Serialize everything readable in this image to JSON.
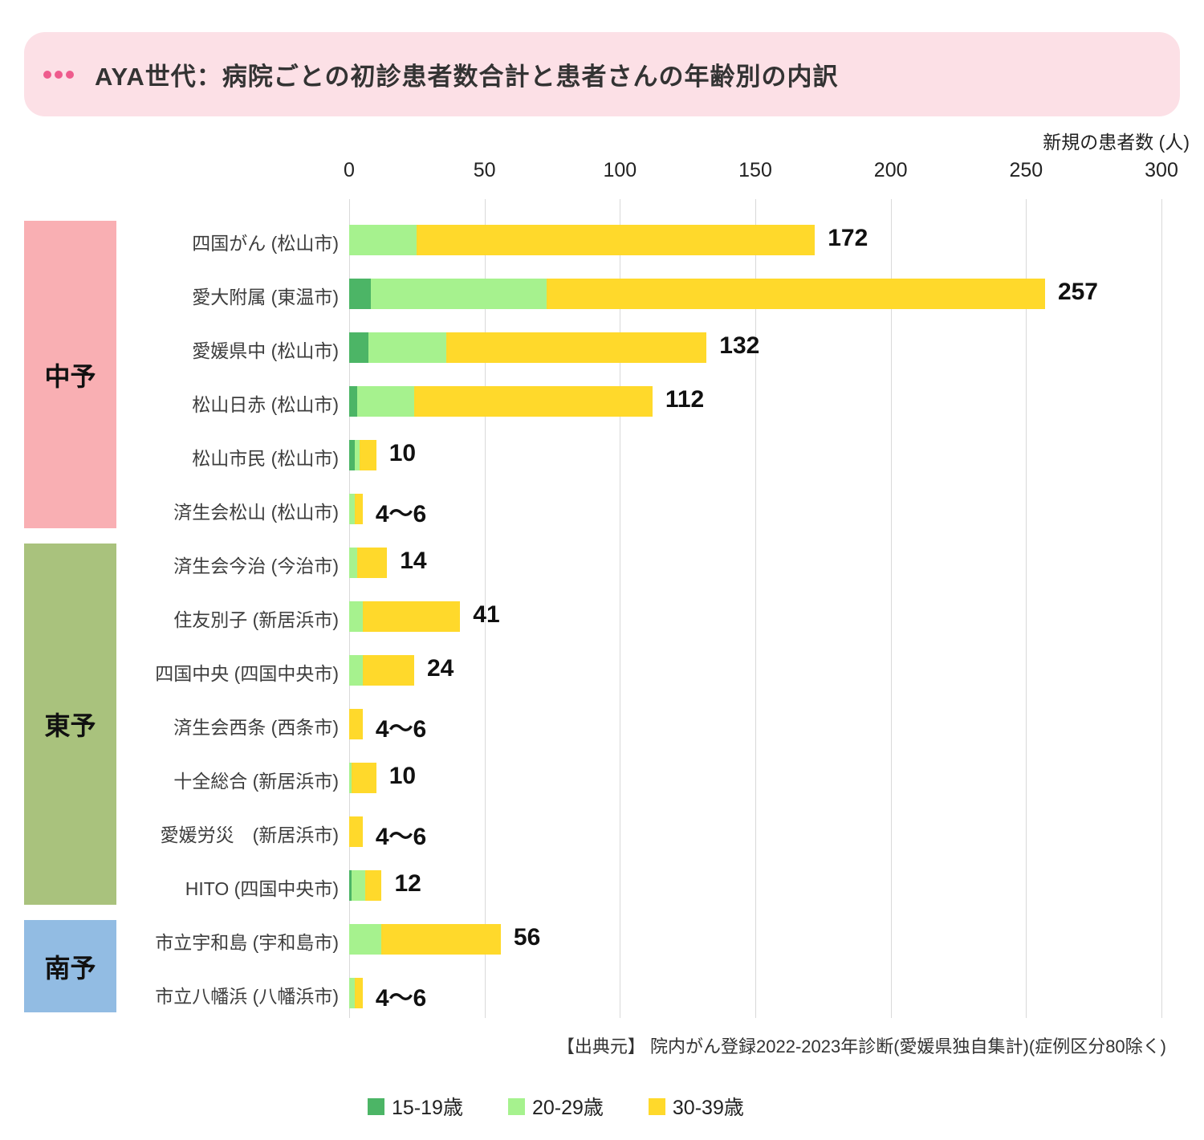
{
  "title": {
    "text": "AYA世代：病院ごとの初診患者数合計と患者さんの年齢別の内訳"
  },
  "axis": {
    "title": "新規の患者数 (人)"
  },
  "source": "【出典元】 院内がん登録2022-2023年診断(愛媛県独自集計)(症例区分80除く)",
  "legend": [
    {
      "label": "15-19歳",
      "color": "#4CB566"
    },
    {
      "label": "20-29歳",
      "color": "#A6F28E"
    },
    {
      "label": "30-39歳",
      "color": "#FFD92B"
    }
  ],
  "colors": {
    "banner_bg": "#FCE0E6",
    "banner_dots": "#EE5C8D",
    "gridline": "#D9D9D9",
    "age_15_19": "#4CB566",
    "age_20_29": "#A6F28E",
    "age_30_39": "#FFD92B",
    "region_chuyo": "#F9AFB3",
    "region_toyo": "#A9C27D",
    "region_nanyo": "#92BCE3"
  },
  "chart_data": {
    "type": "bar",
    "orientation": "horizontal",
    "stacked": true,
    "title": "AYA世代：病院ごとの初診患者数合計と患者さんの年齢別の内訳",
    "xlabel": "新規の患者数 (人)",
    "xlim": [
      0,
      300
    ],
    "x_ticks": [
      0,
      50,
      100,
      150,
      200,
      250,
      300
    ],
    "grid": true,
    "legend_position": "bottom",
    "series_names": [
      "15-19歳",
      "20-29歳",
      "30-39歳"
    ],
    "series_colors": [
      "#4CB566",
      "#A6F28E",
      "#FFD92B"
    ],
    "regions": [
      {
        "id": "chuyo",
        "label": "中予",
        "color": "#F9AFB3",
        "hospitals": [
          {
            "label": "四国がん (松山市)",
            "total_label": "172",
            "segments": [
              0,
              25,
              147
            ]
          },
          {
            "label": "愛大附属 (東温市)",
            "total_label": "257",
            "segments": [
              8,
              65,
              184
            ]
          },
          {
            "label": "愛媛県中 (松山市)",
            "total_label": "132",
            "segments": [
              7,
              29,
              96
            ]
          },
          {
            "label": "松山日赤 (松山市)",
            "total_label": "112",
            "segments": [
              3,
              21,
              88
            ]
          },
          {
            "label": "松山市民 (松山市)",
            "total_label": "10",
            "segments": [
              2,
              2,
              6
            ]
          },
          {
            "label": "済生会松山 (松山市)",
            "total_label": "4〜6",
            "segments": [
              0,
              2,
              3
            ]
          }
        ]
      },
      {
        "id": "toyo",
        "label": "東予",
        "color": "#A9C27D",
        "hospitals": [
          {
            "label": "済生会今治 (今治市)",
            "total_label": "14",
            "segments": [
              0,
              3,
              11
            ]
          },
          {
            "label": "住友別子 (新居浜市)",
            "total_label": "41",
            "segments": [
              0,
              5,
              36
            ]
          },
          {
            "label": "四国中央 (四国中央市)",
            "total_label": "24",
            "segments": [
              0,
              5,
              19
            ]
          },
          {
            "label": "済生会西条 (西条市)",
            "total_label": "4〜6",
            "segments": [
              0,
              0,
              5
            ]
          },
          {
            "label": "十全総合 (新居浜市)",
            "total_label": "10",
            "segments": [
              0,
              1,
              9
            ]
          },
          {
            "label": "愛媛労災　(新居浜市)",
            "total_label": "4〜6",
            "segments": [
              0,
              0,
              5
            ]
          },
          {
            "label": "HITO (四国中央市)",
            "total_label": "12",
            "segments": [
              1,
              5,
              6
            ]
          }
        ]
      },
      {
        "id": "nanyo",
        "label": "南予",
        "color": "#92BCE3",
        "hospitals": [
          {
            "label": "市立宇和島 (宇和島市)",
            "total_label": "56",
            "segments": [
              0,
              12,
              44
            ]
          },
          {
            "label": "市立八幡浜 (八幡浜市)",
            "total_label": "4〜6",
            "segments": [
              0,
              2,
              3
            ]
          }
        ]
      }
    ]
  }
}
